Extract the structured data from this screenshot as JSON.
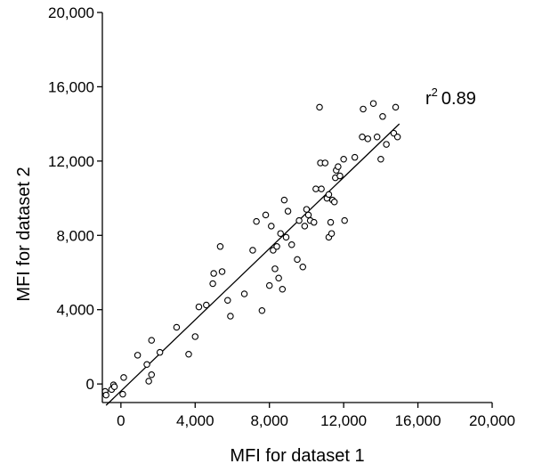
{
  "chart_data": {
    "type": "scatter",
    "xlabel": "MFI for dataset 1",
    "ylabel": "MFI for dataset 2",
    "xlim": [
      -1000,
      20000
    ],
    "ylim": [
      -1000,
      20000
    ],
    "xticks": [
      0,
      4000,
      8000,
      12000,
      16000,
      20000
    ],
    "xtick_labels": [
      "0",
      "4,000",
      "8,000",
      "12,000",
      "16,000",
      "20,000"
    ],
    "yticks": [
      0,
      4000,
      8000,
      12000,
      16000,
      20000
    ],
    "ytick_labels": [
      "0",
      "4,000",
      "8,000",
      "12,000",
      "16,000",
      "20,000"
    ],
    "grid": false,
    "marker": "open-circle",
    "annotation": {
      "base": "r",
      "sup": "2",
      "value": "0.89"
    },
    "trendline": {
      "x": [
        -800,
        15000
      ],
      "y": [
        -1150,
        14000
      ]
    },
    "points": [
      [
        -850,
        -400
      ],
      [
        -800,
        -600
      ],
      [
        -500,
        -300
      ],
      [
        -400,
        -50
      ],
      [
        -350,
        -150
      ],
      [
        100,
        -550
      ],
      [
        150,
        350
      ],
      [
        900,
        1550
      ],
      [
        1400,
        1050
      ],
      [
        1500,
        150
      ],
      [
        1650,
        500
      ],
      [
        1650,
        2350
      ],
      [
        2100,
        1700
      ],
      [
        3000,
        3050
      ],
      [
        3650,
        1600
      ],
      [
        4000,
        2550
      ],
      [
        4200,
        4150
      ],
      [
        4600,
        4250
      ],
      [
        4950,
        5400
      ],
      [
        5000,
        5950
      ],
      [
        5350,
        7400
      ],
      [
        5450,
        6050
      ],
      [
        5750,
        4500
      ],
      [
        5900,
        3650
      ],
      [
        6650,
        4850
      ],
      [
        7100,
        7200
      ],
      [
        7300,
        8750
      ],
      [
        7600,
        3950
      ],
      [
        7800,
        9100
      ],
      [
        8000,
        5300
      ],
      [
        8100,
        8500
      ],
      [
        8200,
        7200
      ],
      [
        8300,
        6200
      ],
      [
        8400,
        7400
      ],
      [
        8500,
        5700
      ],
      [
        8600,
        8100
      ],
      [
        8700,
        5100
      ],
      [
        8800,
        9900
      ],
      [
        8900,
        7900
      ],
      [
        9000,
        9300
      ],
      [
        9200,
        7500
      ],
      [
        9500,
        6700
      ],
      [
        9600,
        8800
      ],
      [
        9800,
        6300
      ],
      [
        9900,
        8500
      ],
      [
        10000,
        9400
      ],
      [
        10100,
        9100
      ],
      [
        10200,
        8800
      ],
      [
        10400,
        8700
      ],
      [
        10500,
        10500
      ],
      [
        10700,
        14900
      ],
      [
        10750,
        11900
      ],
      [
        10800,
        10500
      ],
      [
        11000,
        11900
      ],
      [
        11100,
        10000
      ],
      [
        11200,
        7900
      ],
      [
        11200,
        10200
      ],
      [
        11300,
        8700
      ],
      [
        11350,
        8100
      ],
      [
        11400,
        9900
      ],
      [
        11500,
        9800
      ],
      [
        11550,
        11100
      ],
      [
        11600,
        11500
      ],
      [
        11700,
        11700
      ],
      [
        11800,
        11200
      ],
      [
        12000,
        12100
      ],
      [
        12050,
        8800
      ],
      [
        12600,
        12200
      ],
      [
        13000,
        13300
      ],
      [
        13050,
        14800
      ],
      [
        13300,
        13200
      ],
      [
        13600,
        15100
      ],
      [
        13800,
        13300
      ],
      [
        14000,
        12100
      ],
      [
        14100,
        14400
      ],
      [
        14300,
        12900
      ],
      [
        14700,
        13500
      ],
      [
        14800,
        14900
      ],
      [
        14900,
        13300
      ]
    ]
  }
}
